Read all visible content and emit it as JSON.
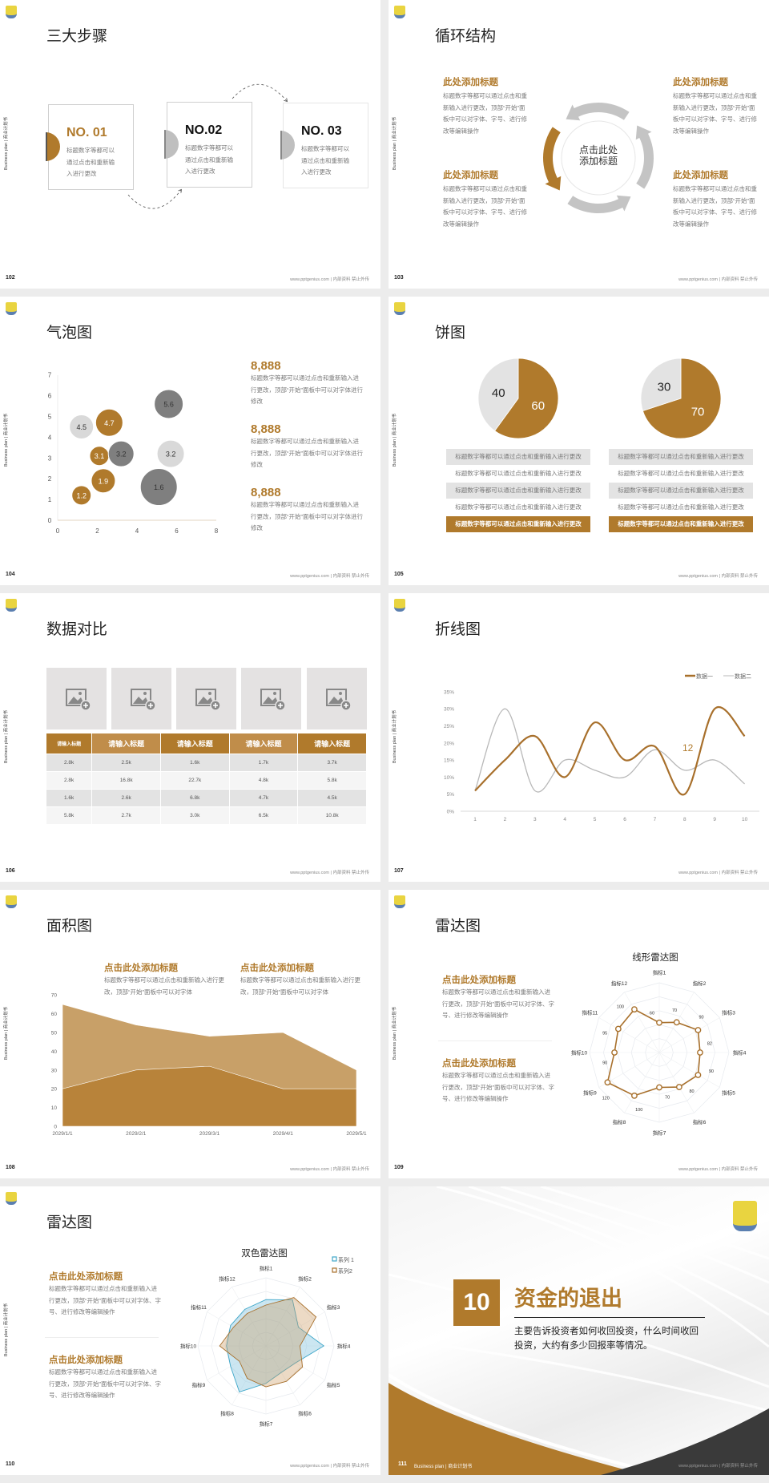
{
  "common": {
    "side_label": "Business plan | 商业计划书",
    "footer": "www.pptgenius.com | 内部资料 禁止外传",
    "logo_icon": "school-crest-logo"
  },
  "colors": {
    "brown": "#b07a2c",
    "light_brown": "#c8a068",
    "gray": "#e0e0e0",
    "dark_gray": "#7f7f7f",
    "blue": "#3fa7c9",
    "dark": "#3a3a3a"
  },
  "s102": {
    "page": "102",
    "title": "三大步骤",
    "steps": [
      {
        "label": "NO. 01",
        "text": "标题数字等都可以通过点击和重新输入进行更改"
      },
      {
        "label": "NO.02",
        "text": "标题数字等都可以通过点击和重新输入进行更改"
      },
      {
        "label": "NO. 03",
        "text": "标题数字等都可以通过点击和重新输入进行更改"
      }
    ]
  },
  "s103": {
    "page": "103",
    "title": "循环结构",
    "center_line1": "点击此处",
    "center_line2": "添加标题",
    "blocks": [
      {
        "title": "此处添加标题",
        "text": "标题数字等都可以通过点击和重新输入进行更改，顶部“开始”面板中可以对字体、字号、进行修改等编辑操作"
      },
      {
        "title": "此处添加标题",
        "text": "标题数字等都可以通过点击和重新输入进行更改，顶部“开始”面板中可以对字体、字号、进行修改等编辑操作"
      },
      {
        "title": "此处添加标题",
        "text": "标题数字等都可以通过点击和重新输入进行更改，顶部“开始”面板中可以对字体、字号、进行修改等编辑操作"
      },
      {
        "title": "此处添加标题",
        "text": "标题数字等都可以通过点击和重新输入进行更改，顶部“开始”面板中可以对字体、字号、进行修改等编辑操作"
      }
    ]
  },
  "s104": {
    "page": "104",
    "title": "气泡图",
    "stats": [
      {
        "value": "8,888",
        "text": "标题数字等都可以通过点击和重新输入进行更改，顶部“开始”面板中可以对字体进行修改"
      },
      {
        "value": "8,888",
        "text": "标题数字等都可以通过点击和重新输入进行更改，顶部“开始”面板中可以对字体进行修改"
      },
      {
        "value": "8,888",
        "text": "标题数字等都可以通过点击和重新输入进行更改，顶部“开始”面板中可以对字体进行修改"
      }
    ]
  },
  "s105": {
    "page": "105",
    "title": "饼图",
    "rows": [
      "标题数字等都可以通过点击和重新输入进行更改",
      "标题数字等都可以通过点击和重新输入进行更改",
      "标题数字等都可以通过点击和重新输入进行更改",
      "标题数字等都可以通过点击和重新输入进行更改",
      "标题数字等都可以通过点击和重新输入进行更改"
    ]
  },
  "s106": {
    "page": "106",
    "title": "数据对比",
    "image_icon": "image-add-icon",
    "headers": [
      "请输入标题",
      "请输入标题",
      "请输入标题",
      "请输入标题",
      "请输入标题"
    ],
    "rows": [
      [
        "2.8k",
        "2.5k",
        "1.6k",
        "1.7k",
        "3.7k"
      ],
      [
        "2.8k",
        "16.8k",
        "22.7k",
        "4.8k",
        "5.8k"
      ],
      [
        "1.6k",
        "2.6k",
        "6.8k",
        "4.7k",
        "4.5k"
      ],
      [
        "5.8k",
        "2.7k",
        "3.0k",
        "6.5k",
        "10.8k"
      ]
    ]
  },
  "s107": {
    "page": "107",
    "title": "折线图"
  },
  "s108": {
    "page": "108",
    "title": "面积图",
    "blocks": [
      {
        "title": "点击此处添加标题",
        "text": "标题数字等都可以通过点击和重新输入进行更改，顶部“开始”面板中可以对字体"
      },
      {
        "title": "点击此处添加标题",
        "text": "标题数字等都可以通过点击和重新输入进行更改，顶部“开始”面板中可以对字体"
      }
    ]
  },
  "s109": {
    "page": "109",
    "title": "雷达图",
    "blocks": [
      {
        "title": "点击此处添加标题",
        "text": "标题数字等都可以通过点击和重新输入进行更改，顶部“开始”面板中可以对字体、字号、进行修改等编辑操作"
      },
      {
        "title": "点击此处添加标题",
        "text": "标题数字等都可以通过点击和重新输入进行更改，顶部“开始”面板中可以对字体、字号、进行修改等编辑操作"
      }
    ]
  },
  "s110": {
    "page": "110",
    "title": "雷达图",
    "blocks": [
      {
        "title": "点击此处添加标题",
        "text": "标题数字等都可以通过点击和重新输入进行更改，顶部“开始”面板中可以对字体、字号、进行修改等编辑操作"
      },
      {
        "title": "点击此处添加标题",
        "text": "标题数字等都可以通过点击和重新输入进行更改，顶部“开始”面板中可以对字体、字号、进行修改等编辑操作"
      }
    ]
  },
  "s111": {
    "page": "111",
    "footer_left": "Business plan | 商业计划书",
    "number": "10",
    "title": "资金的退出",
    "text": "主要告诉投资者如何收回投资，什么时间收回投资，大约有多少回报率等情况。"
  },
  "chart_data": [
    {
      "type": "scatter",
      "subtype": "bubble",
      "xlim": [
        0,
        8
      ],
      "ylim": [
        0,
        7
      ],
      "xticks": [
        "0",
        "2",
        "4",
        "6",
        "8"
      ],
      "yticks": [
        "0",
        "1",
        "2",
        "3",
        "4",
        "5",
        "6",
        "7"
      ],
      "points": [
        {
          "x": 1.2,
          "y": 4.5,
          "size": 15,
          "label": "4.5",
          "color": "light"
        },
        {
          "x": 2.6,
          "y": 4.7,
          "size": 17,
          "label": "4.7",
          "color": "brown"
        },
        {
          "x": 2.1,
          "y": 3.1,
          "size": 12,
          "label": "3.1",
          "color": "brown"
        },
        {
          "x": 3.2,
          "y": 3.2,
          "size": 16,
          "label": "3.2",
          "color": "dark"
        },
        {
          "x": 5.6,
          "y": 5.6,
          "size": 18,
          "label": "5.6",
          "color": "dark"
        },
        {
          "x": 5.7,
          "y": 3.2,
          "size": 17,
          "label": "3.2",
          "color": "light"
        },
        {
          "x": 2.3,
          "y": 1.9,
          "size": 15,
          "label": "1.9",
          "color": "brown"
        },
        {
          "x": 1.2,
          "y": 1.2,
          "size": 12,
          "label": "1.2",
          "color": "brown"
        },
        {
          "x": 5.1,
          "y": 1.6,
          "size": 23,
          "label": "1.6",
          "color": "dark"
        }
      ]
    },
    {
      "type": "pie",
      "slices": [
        {
          "value": 60,
          "label": "60",
          "color": "#b07a2c"
        },
        {
          "value": 40,
          "label": "40",
          "color": "#e3e3e3"
        }
      ]
    },
    {
      "type": "pie",
      "slices": [
        {
          "value": 70,
          "label": "70",
          "color": "#b07a2c"
        },
        {
          "value": 30,
          "label": "30",
          "color": "#e3e3e3"
        }
      ]
    },
    {
      "type": "line",
      "smooth": true,
      "x": [
        "1",
        "2",
        "3",
        "4",
        "5",
        "6",
        "7",
        "8",
        "9",
        "10"
      ],
      "ylim": [
        0,
        35
      ],
      "yticks": [
        "0%",
        "5%",
        "10%",
        "15%",
        "20%",
        "25%",
        "30%",
        "35%"
      ],
      "legend": "top-right",
      "series": [
        {
          "name": "数据一",
          "color": "#a8702c",
          "values": [
            6,
            15,
            22,
            10,
            26,
            15,
            19,
            5,
            30,
            22
          ]
        },
        {
          "name": "数据二",
          "color": "#b8b8b8",
          "values": [
            6,
            30,
            6,
            15,
            12,
            10,
            18,
            12,
            15,
            8
          ]
        }
      ],
      "annotation": "12"
    },
    {
      "type": "area",
      "x": [
        "2029/1/1",
        "2029/2/1",
        "2029/3/1",
        "2029/4/1",
        "2029/5/1"
      ],
      "ylim": [
        0,
        70
      ],
      "yticks": [
        "0",
        "10",
        "20",
        "30",
        "40",
        "50",
        "60",
        "70"
      ],
      "series": [
        {
          "color": "#c8a068",
          "values": [
            65,
            54,
            48,
            50,
            30
          ]
        },
        {
          "color": "#b8833a",
          "values": [
            20,
            30,
            32,
            20,
            20
          ]
        }
      ]
    },
    {
      "type": "radar",
      "title": "线形雷达图",
      "axes": [
        "指标1",
        "指标2",
        "指标3",
        "指标4",
        "指标5",
        "指标6",
        "指标7",
        "指标8",
        "指标9",
        "指标10",
        "指标11",
        "指标12"
      ],
      "rmax": 140,
      "series": [
        {
          "color": "#a8702c",
          "values": [
            60,
            70,
            90,
            82,
            90,
            80,
            70,
            100,
            120,
            90,
            95,
            100
          ]
        }
      ]
    },
    {
      "type": "radar",
      "title": "双色雷达图",
      "axes": [
        "指标1",
        "指标2",
        "指标3",
        "指标4",
        "指标5",
        "指标6",
        "指标7",
        "指标8",
        "指标9",
        "指标10",
        "指标11",
        "指标12"
      ],
      "rmax": 100,
      "legend": "top-right",
      "series": [
        {
          "name": "系列 1",
          "color": "#3fa7c9",
          "fill": "rgba(140,200,225,0.45)",
          "values": [
            68,
            78,
            55,
            85,
            50,
            45,
            55,
            78,
            60,
            58,
            60,
            62
          ]
        },
        {
          "name": "系列2",
          "color": "#a8702c",
          "fill": "rgba(200,150,90,0.35)",
          "values": [
            60,
            82,
            85,
            50,
            62,
            60,
            60,
            55,
            45,
            68,
            55,
            55
          ]
        }
      ]
    }
  ]
}
